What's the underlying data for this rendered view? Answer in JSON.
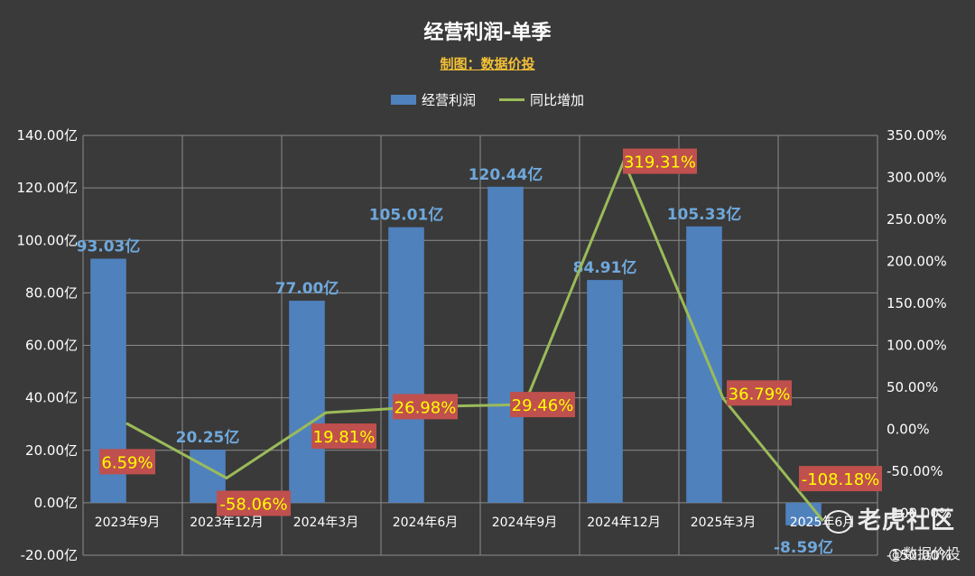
{
  "chart_data": {
    "type": "bar",
    "title": "经营利润-单季",
    "subtitle": "制图：数据价投",
    "categories": [
      "2023年9月",
      "2023年12月",
      "2024年3月",
      "2024年6月",
      "2024年9月",
      "2024年12月",
      "2025年3月",
      "2025年6月"
    ],
    "series": [
      {
        "name": "经营利润",
        "type": "bar",
        "axis": "left",
        "values": [
          93.03,
          20.25,
          77.0,
          105.01,
          120.44,
          84.91,
          105.33,
          -8.59
        ],
        "labels": [
          "93.03亿",
          "20.25亿",
          "77.00亿",
          "105.01亿",
          "120.44亿",
          "84.91亿",
          "105.33亿",
          "-8.59亿"
        ],
        "color": "#4f81bd"
      },
      {
        "name": "同比增加",
        "type": "line",
        "axis": "right",
        "values": [
          6.59,
          -58.06,
          19.81,
          26.98,
          29.46,
          319.31,
          36.79,
          -108.18
        ],
        "labels": [
          "6.59%",
          "-58.06%",
          "19.81%",
          "26.98%",
          "29.46%",
          "319.31%",
          "36.79%",
          "-108.18%"
        ],
        "color": "#9bbb59"
      }
    ],
    "y_left": {
      "ylim": [
        -20,
        140
      ],
      "ticks": [
        "140.00亿",
        "120.00亿",
        "100.00亿",
        "80.00亿",
        "60.00亿",
        "40.00亿",
        "20.00亿",
        "0.00亿",
        "-20.00亿"
      ]
    },
    "y_right": {
      "ylim": [
        -150,
        350
      ],
      "ticks": [
        "350.00%",
        "300.00%",
        "250.00%",
        "200.00%",
        "150.00%",
        "100.00%",
        "50.00%",
        "0.00%",
        "-50.00%",
        "-100.00%",
        "-150.00%"
      ]
    },
    "grid": true,
    "legend_position": "top-center",
    "colors": {
      "background": "#3a3a3a",
      "bar": "#4f81bd",
      "line": "#9bbb59",
      "line_label_bg": "#c0504d",
      "line_label_text": "#ffff00",
      "bar_label_text": "#6fa8dc",
      "subtitle": "#f2c037"
    }
  },
  "watermark": {
    "brand": "老虎社区",
    "credit": "@数据价投"
  }
}
